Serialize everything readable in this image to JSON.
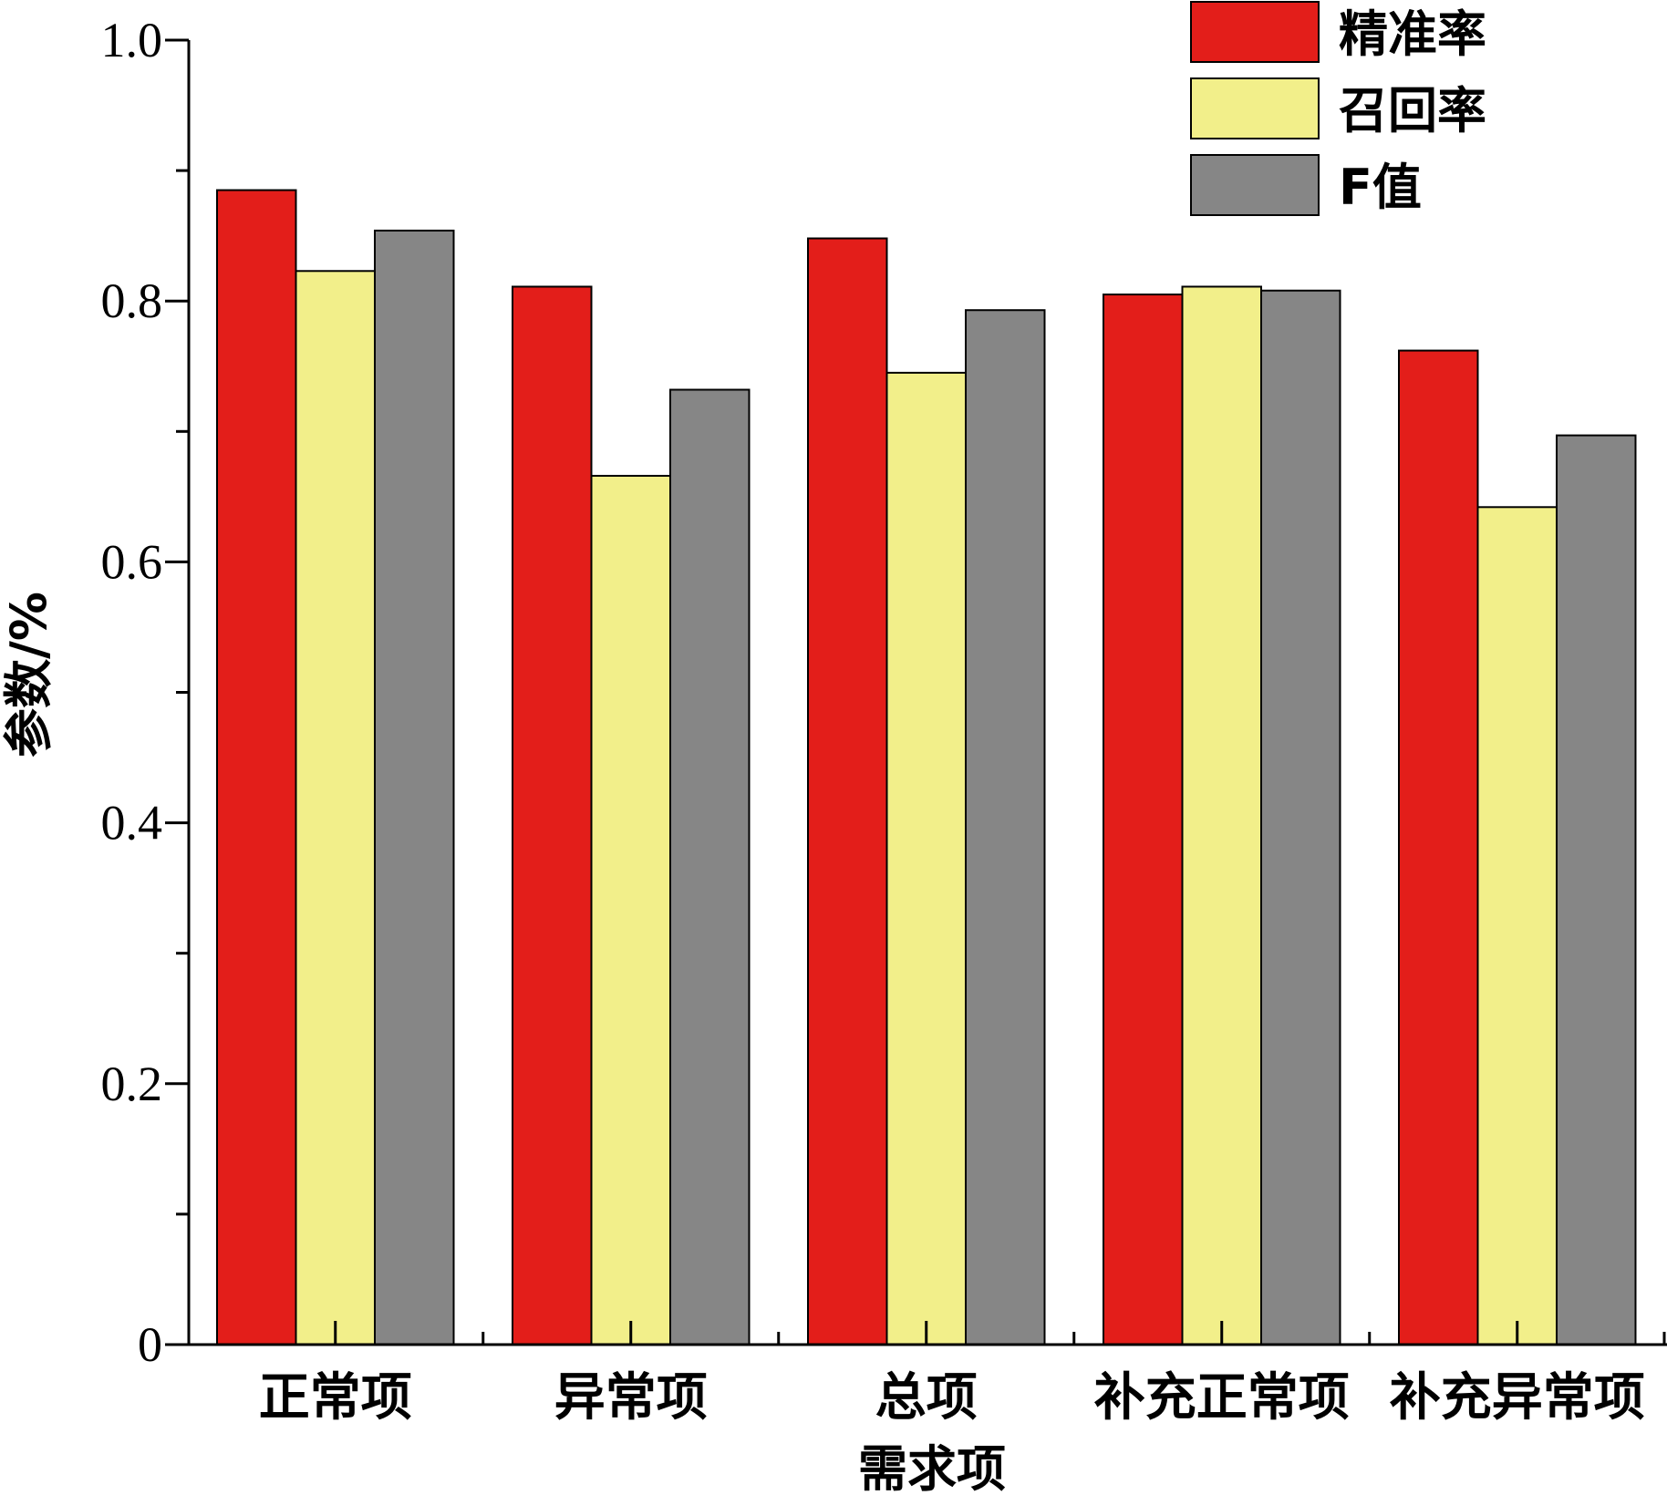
{
  "chart_data": {
    "type": "bar",
    "xlabel": "需求项",
    "ylabel": "参数/%",
    "ylim": [
      0,
      1.0
    ],
    "yticks": [
      0,
      0.2,
      0.4,
      0.6,
      0.8,
      1.0
    ],
    "ytick_labels": [
      "0",
      "0.2",
      "0.4",
      "0.6",
      "0.8",
      "1.0"
    ],
    "minor_yticks": [
      0.1,
      0.3,
      0.5,
      0.7,
      0.9
    ],
    "categories": [
      "正常项",
      "异常项",
      "总项",
      "补充正常项",
      "补充异常项"
    ],
    "series": [
      {
        "name": "精准率",
        "color": "#e31e1a",
        "values": [
          0.885,
          0.811,
          0.848,
          0.805,
          0.762
        ]
      },
      {
        "name": "召回率",
        "color": "#f2ef8a",
        "values": [
          0.823,
          0.666,
          0.745,
          0.811,
          0.642
        ]
      },
      {
        "name": "F值",
        "color": "#868686",
        "values": [
          0.854,
          0.732,
          0.793,
          0.808,
          0.697
        ]
      }
    ],
    "legend_position": "top-right",
    "grid": false
  }
}
